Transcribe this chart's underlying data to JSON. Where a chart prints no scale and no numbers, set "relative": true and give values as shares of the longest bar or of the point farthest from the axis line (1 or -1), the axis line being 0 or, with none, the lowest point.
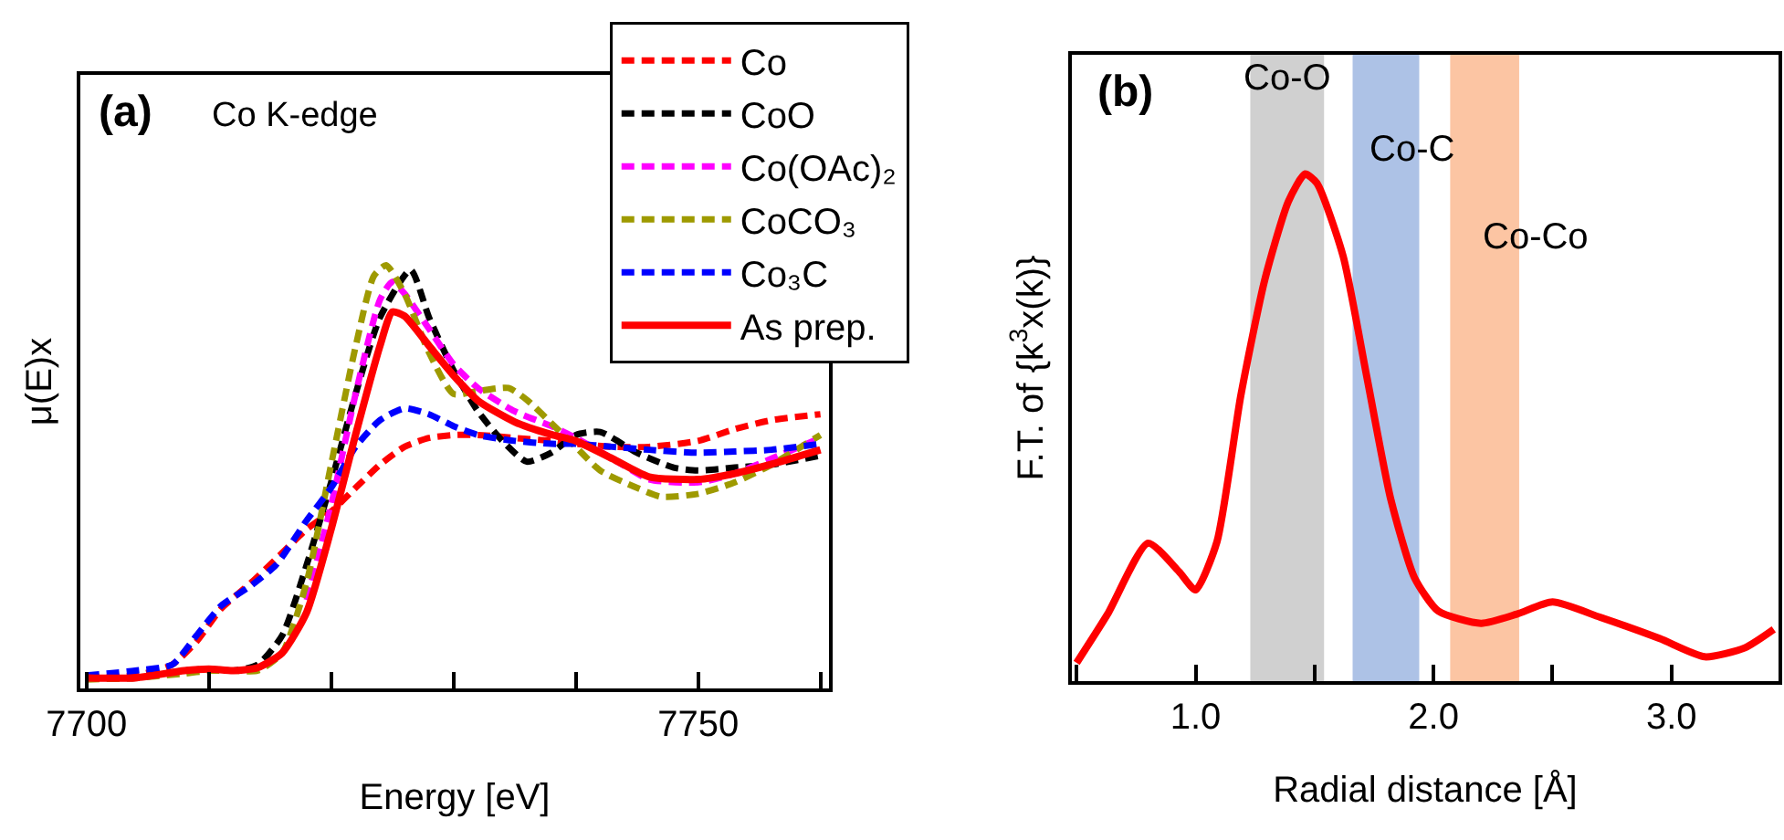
{
  "chart_data": [
    {
      "type": "line",
      "relative": true,
      "xlabel": "Energy [eV]",
      "ylabel": "μ(E)x",
      "annotations": [
        "(a)",
        "Co K-edge"
      ],
      "legend": "top right",
      "tick_labels": "x",
      "xlim": [
        7699.5,
        7760.7
      ],
      "xticks": [
        7700,
        {
          "value": 7710,
          "label": null
        },
        {
          "value": 7720,
          "label": null
        },
        {
          "value": 7730,
          "label": null
        },
        {
          "value": 7740,
          "label": null
        },
        7750,
        {
          "value": 7760,
          "label": null
        }
      ],
      "series": [
        {
          "name": "Co",
          "color": "#ff0000",
          "line_style": "dashed",
          "x": [
            7700,
            7704,
            7707,
            7709,
            7711,
            7713.5,
            7715.5,
            7718,
            7720,
            7722,
            7724,
            7726,
            7728,
            7730,
            7732,
            7735,
            7738,
            7740,
            7743,
            7746,
            7750,
            7753,
            7756,
            7760
          ],
          "values": [
            0.025,
            0.031,
            0.056,
            0.111,
            0.188,
            0.251,
            0.306,
            0.376,
            0.418,
            0.474,
            0.529,
            0.571,
            0.592,
            0.599,
            0.599,
            0.592,
            0.585,
            0.578,
            0.571,
            0.571,
            0.585,
            0.613,
            0.634,
            0.648
          ]
        },
        {
          "name": "CoO",
          "color": "#000000",
          "line_style": "dashed",
          "x": [
            7700,
            7704,
            7708,
            7710,
            7712,
            7714,
            7716,
            7718,
            7720,
            7722,
            7724,
            7726.5,
            7728,
            7730,
            7732,
            7734,
            7736,
            7738,
            7740,
            7742,
            7745,
            7748,
            7750,
            7753,
            7756,
            7760
          ],
          "values": [
            0.025,
            0.025,
            0.042,
            0.046,
            0.042,
            0.056,
            0.125,
            0.292,
            0.487,
            0.696,
            0.877,
            0.989,
            0.877,
            0.752,
            0.655,
            0.585,
            0.536,
            0.557,
            0.599,
            0.606,
            0.557,
            0.522,
            0.515,
            0.522,
            0.529,
            0.55
          ]
        },
        {
          "name": "Co(OAc)₂",
          "color": "#ff00ff",
          "line_style": "dashed",
          "x": [
            7718,
            7720,
            7722,
            7724,
            7725,
            7726,
            7728,
            7730,
            7732,
            7735,
            7738,
            7740,
            7743,
            7746,
            7750,
            7753,
            7756,
            7760
          ],
          "values": [
            0.209,
            0.432,
            0.696,
            0.919,
            0.961,
            0.933,
            0.85,
            0.766,
            0.71,
            0.655,
            0.62,
            0.592,
            0.543,
            0.494,
            0.487,
            0.508,
            0.543,
            0.592
          ]
        },
        {
          "name": "CoCO₃",
          "color": "#9e9a00",
          "line_style": "dashed",
          "x": [
            7700,
            7704,
            7708,
            7710,
            7712,
            7714,
            7716,
            7718,
            7720,
            7722,
            7723.5,
            7724.5,
            7726,
            7728,
            7730,
            7732,
            7734.5,
            7736,
            7738,
            7740,
            7742,
            7745,
            7747,
            7750,
            7753,
            7756,
            7760
          ],
          "values": [
            0.021,
            0.025,
            0.035,
            0.042,
            0.042,
            0.042,
            0.084,
            0.251,
            0.529,
            0.808,
            0.975,
            1,
            0.933,
            0.794,
            0.696,
            0.703,
            0.71,
            0.682,
            0.627,
            0.571,
            0.515,
            0.474,
            0.453,
            0.46,
            0.487,
            0.529,
            0.599
          ]
        },
        {
          "name": "Co₃C",
          "color": "#0000ff",
          "line_style": "dashed",
          "x": [
            7700,
            7704,
            7707,
            7709,
            7711,
            7713.5,
            7715.5,
            7718,
            7720,
            7722,
            7724,
            7726,
            7728,
            7730,
            7732,
            7735,
            7738,
            7740,
            7743,
            7746,
            7750,
            7753,
            7756,
            7760
          ],
          "values": [
            0.031,
            0.042,
            0.056,
            0.125,
            0.195,
            0.244,
            0.292,
            0.397,
            0.474,
            0.571,
            0.634,
            0.662,
            0.648,
            0.62,
            0.599,
            0.585,
            0.578,
            0.578,
            0.571,
            0.564,
            0.557,
            0.56,
            0.564,
            0.578
          ]
        },
        {
          "name": "As prep.",
          "color": "#ff0000",
          "line_style": "solid",
          "x": [
            7700,
            7704,
            7708,
            7710,
            7712,
            7714,
            7716,
            7718,
            7720,
            7722,
            7724,
            7725,
            7726,
            7728,
            7730,
            7732,
            7735,
            7738,
            7740,
            7743,
            7746,
            7750,
            7753,
            7756,
            7760
          ],
          "values": [
            0.025,
            0.025,
            0.042,
            0.046,
            0.042,
            0.049,
            0.084,
            0.18,
            0.376,
            0.6,
            0.81,
            0.89,
            0.88,
            0.81,
            0.74,
            0.68,
            0.63,
            0.6,
            0.585,
            0.543,
            0.5,
            0.494,
            0.508,
            0.53,
            0.564
          ]
        }
      ]
    },
    {
      "type": "line",
      "relative": true,
      "xlabel": "Radial distance [Å]",
      "ylabel": "F.T. of {k$^{3}$x(k)}",
      "annotations": [
        "(b)"
      ],
      "tick_labels": "x",
      "xlim": [
        0.48,
        3.45
      ],
      "xticks": [
        {
          "value": 0.5,
          "label": null
        },
        {
          "value": 1,
          "label": "1.0"
        },
        {
          "value": 1.5,
          "label": null
        },
        {
          "value": 2,
          "label": "2.0"
        },
        {
          "value": 2.5,
          "label": null
        },
        {
          "value": 3,
          "label": "3.0"
        }
      ],
      "bands": [
        {
          "axis": "x",
          "from": 1.23,
          "to": 1.54,
          "label": "Co-O",
          "color": "#d0d0d0"
        },
        {
          "axis": "x",
          "from": 1.66,
          "to": 1.94,
          "label": "Co-C",
          "color": "#adc2e6"
        },
        {
          "axis": "x",
          "from": 2.07,
          "to": 2.36,
          "label": "Co-Co",
          "color": "#fcc5a3"
        }
      ],
      "series": [
        {
          "color": "#ff0000",
          "line_style": "solid",
          "x": [
            0.5,
            0.63,
            0.8,
            0.93,
            1.0,
            1.09,
            1.19,
            1.29,
            1.39,
            1.46,
            1.51,
            1.62,
            1.72,
            1.82,
            1.92,
            2.02,
            2.2,
            2.35,
            2.5,
            2.7,
            2.95,
            3.14,
            3.31,
            3.43
          ],
          "values": [
            0.036,
            0.132,
            0.272,
            0.216,
            0.18,
            0.275,
            0.563,
            0.79,
            0.946,
            1,
            0.982,
            0.838,
            0.599,
            0.359,
            0.204,
            0.138,
            0.114,
            0.132,
            0.156,
            0.126,
            0.084,
            0.048,
            0.066,
            0.102
          ]
        }
      ]
    }
  ]
}
